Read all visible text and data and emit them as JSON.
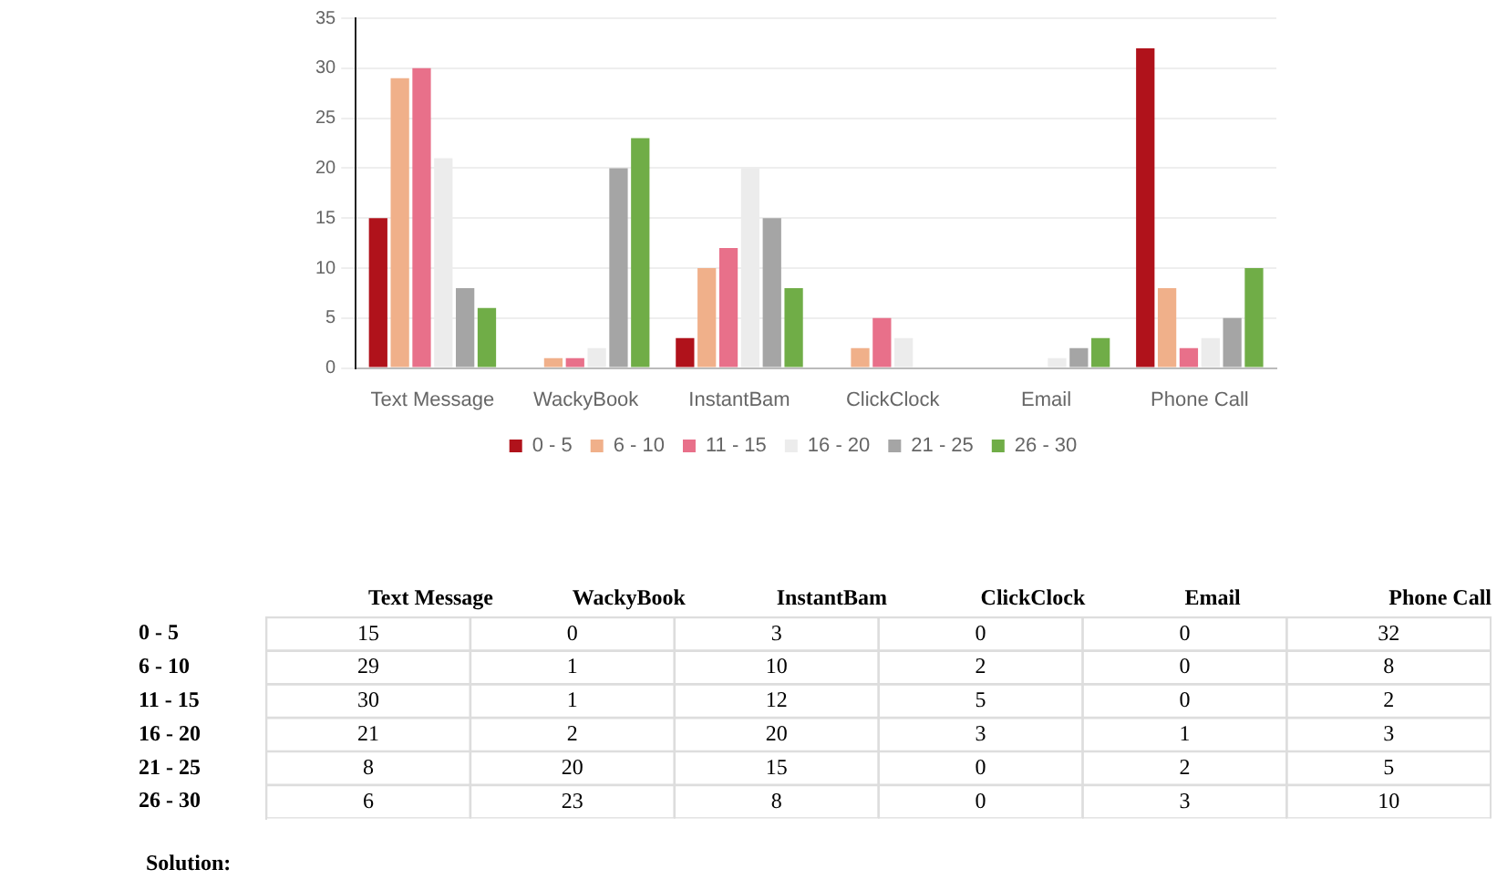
{
  "chart_data": [
    {
      "type": "bar",
      "categories": [
        "Text Message",
        "WackyBook",
        "InstantBam",
        "ClickClock",
        "Email",
        "Phone Call"
      ],
      "series": [
        {
          "name": "0 - 5",
          "color": "#b0121b",
          "values": [
            15,
            0,
            3,
            0,
            0,
            32
          ]
        },
        {
          "name": "6 - 10",
          "color": "#f0b08a",
          "values": [
            29,
            1,
            10,
            2,
            0,
            8
          ]
        },
        {
          "name": "11 - 15",
          "color": "#e8708a",
          "values": [
            30,
            1,
            12,
            5,
            0,
            2
          ]
        },
        {
          "name": "16 - 20",
          "color": "#ececec",
          "values": [
            21,
            2,
            20,
            3,
            1,
            3
          ]
        },
        {
          "name": "21 - 25",
          "color": "#a5a5a5",
          "values": [
            8,
            20,
            15,
            0,
            2,
            5
          ]
        },
        {
          "name": "26 - 30",
          "color": "#70ad47",
          "values": [
            6,
            23,
            8,
            0,
            3,
            10
          ]
        }
      ],
      "ylim": [
        0,
        35
      ],
      "yticks": [
        0,
        5,
        10,
        15,
        20,
        25,
        30,
        35
      ],
      "grid": "y",
      "legend": "bottom"
    },
    {
      "type": "heatmap",
      "categories": [
        "Text Message",
        "WackyBook",
        "InstantBam",
        "ClickClock",
        "Email",
        "Phone Call"
      ],
      "y_categories": [
        "0 - 5",
        "6 - 10",
        "11 - 15",
        "16 - 20",
        "21 - 25",
        "26 - 30"
      ],
      "cells": [
        [
          15,
          0,
          3,
          0,
          0,
          32
        ],
        [
          29,
          1,
          10,
          2,
          0,
          8
        ],
        [
          30,
          1,
          12,
          5,
          0,
          2
        ],
        [
          21,
          2,
          20,
          3,
          1,
          3
        ],
        [
          8,
          20,
          15,
          0,
          2,
          5
        ],
        [
          6,
          23,
          8,
          0,
          3,
          10
        ]
      ],
      "data_labels": true,
      "annotations": [
        "Solution:"
      ]
    }
  ]
}
